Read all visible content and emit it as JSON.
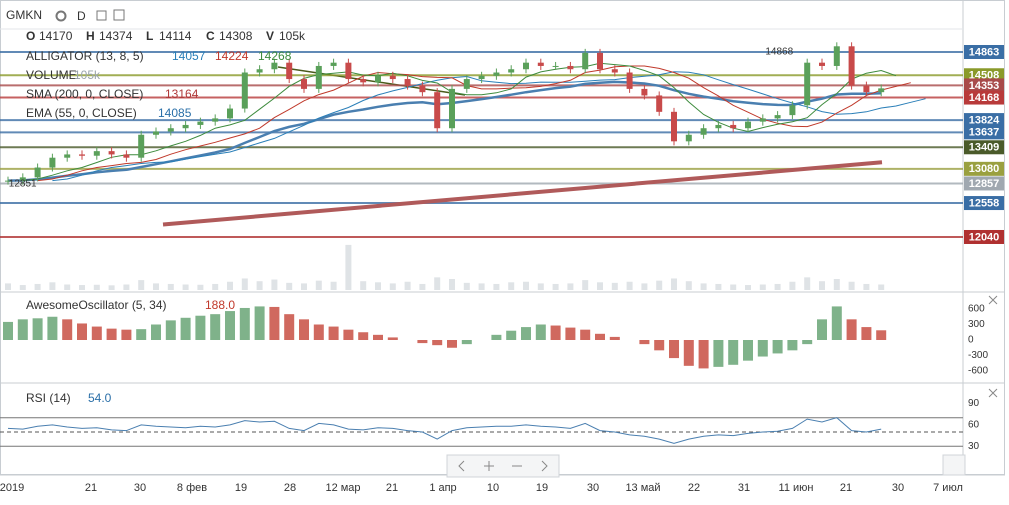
{
  "header": {
    "symbol": "GMKN",
    "interval": "D",
    "ohlcv": [
      {
        "key": "O",
        "value": 14170
      },
      {
        "key": "H",
        "value": 14374
      },
      {
        "key": "L",
        "value": 14114
      },
      {
        "key": "C",
        "value": 14308
      },
      {
        "key": "V",
        "value": "105k"
      }
    ]
  },
  "legend": [
    {
      "name": "ALLIGATOR (13, 8, 5)",
      "values": [
        {
          "text": 14057,
          "color": "#2a7fb8"
        },
        {
          "text": 14224,
          "color": "#c0392b"
        },
        {
          "text": 14268,
          "color": "#3d8b3d"
        }
      ]
    },
    {
      "name": "VOLUME",
      "values": [
        {
          "text": "105k",
          "color": "#9aa4ad"
        }
      ]
    },
    {
      "name": "SMA (200, 0, CLOSE)",
      "values": [
        {
          "text": 13164,
          "color": "#b03a3a"
        }
      ]
    },
    {
      "name": "EMA (55, 0, CLOSE)",
      "values": [
        {
          "text": 14085,
          "color": "#2a6fa8"
        }
      ]
    }
  ],
  "annotations": [
    {
      "text": "14868",
      "value": 14868
    },
    {
      "text": "12851",
      "value": 12851
    }
  ],
  "price_levels": [
    {
      "value": 14863,
      "color": "#3a6ea5"
    },
    {
      "value": 14508,
      "color": "#8a9a2a"
    },
    {
      "value": 14353,
      "color": "#a84a4a"
    },
    {
      "value": 14168,
      "color": "#b83a3a"
    },
    {
      "value": 13824,
      "color": "#3a6ea5"
    },
    {
      "value": 13637,
      "color": "#3a6ea5"
    },
    {
      "value": 13409,
      "color": "#4a5a2a"
    },
    {
      "value": 13080,
      "color": "#9aa040"
    },
    {
      "value": 12857,
      "color": "#a0a8b0"
    },
    {
      "value": 12558,
      "color": "#3a6ea5"
    },
    {
      "value": 12040,
      "color": "#b03030"
    }
  ],
  "prices": [
    12900,
    12950,
    13100,
    13250,
    13300,
    13280,
    13350,
    13300,
    13250,
    13600,
    13650,
    13700,
    13750,
    13800,
    13850,
    14000,
    14550,
    14600,
    14700,
    14450,
    14300,
    14650,
    14700,
    14450,
    14400,
    14500,
    14450,
    14350,
    14250,
    13700,
    14300,
    14450,
    14500,
    14550,
    14600,
    14700,
    14650,
    14650,
    14600,
    14850,
    14600,
    14550,
    14300,
    14200,
    13950,
    13500,
    13600,
    13700,
    13750,
    13700,
    13800,
    13850,
    13900,
    14050,
    14700,
    14650,
    14950,
    14350,
    14250,
    14308
  ],
  "volumes": [
    120,
    90,
    110,
    140,
    100,
    90,
    95,
    85,
    100,
    180,
    120,
    110,
    100,
    95,
    110,
    150,
    210,
    160,
    190,
    130,
    120,
    170,
    150,
    820,
    160,
    140,
    120,
    150,
    110,
    230,
    200,
    130,
    120,
    110,
    140,
    150,
    120,
    110,
    120,
    180,
    140,
    130,
    150,
    120,
    170,
    210,
    160,
    120,
    110,
    100,
    90,
    100,
    110,
    150,
    230,
    160,
    200,
    150,
    110,
    100
  ],
  "sma200_line": [
    12230,
    13180
  ],
  "ao": {
    "name": "AwesomeOscillator (5, 34)",
    "last": "188.0",
    "ticks": [
      600,
      300,
      0,
      -300,
      -600
    ],
    "values": [
      350,
      400,
      420,
      450,
      400,
      320,
      260,
      220,
      200,
      210,
      300,
      380,
      430,
      470,
      500,
      560,
      620,
      650,
      640,
      500,
      400,
      300,
      260,
      200,
      150,
      100,
      50,
      0,
      -60,
      -100,
      -150,
      -80,
      0,
      100,
      180,
      250,
      300,
      280,
      240,
      200,
      120,
      60,
      0,
      -80,
      -200,
      -350,
      -500,
      -550,
      -520,
      -480,
      -400,
      -320,
      -260,
      -200,
      -80,
      400,
      650,
      400,
      250,
      188
    ]
  },
  "rsi": {
    "name": "RSI (14)",
    "last": "54.0",
    "ticks": [
      90,
      60,
      30
    ],
    "levels": [
      70,
      50,
      30
    ],
    "values": [
      55,
      54,
      58,
      60,
      57,
      55,
      56,
      53,
      52,
      60,
      58,
      57,
      56,
      58,
      57,
      60,
      66,
      64,
      65,
      55,
      52,
      62,
      60,
      54,
      53,
      56,
      55,
      52,
      50,
      40,
      52,
      56,
      57,
      58,
      58,
      60,
      58,
      57,
      55,
      62,
      52,
      50,
      46,
      44,
      40,
      34,
      40,
      44,
      46,
      45,
      48,
      50,
      51,
      55,
      68,
      64,
      70,
      52,
      50,
      54
    ]
  },
  "x_axis": [
    "2019",
    "21",
    "30",
    "8 фев",
    "19",
    "28",
    "12 мар",
    "21",
    "1 апр",
    "10",
    "19",
    "30",
    "13 май",
    "22",
    "31",
    "11 июн",
    "21",
    "30",
    "7 июл"
  ]
}
